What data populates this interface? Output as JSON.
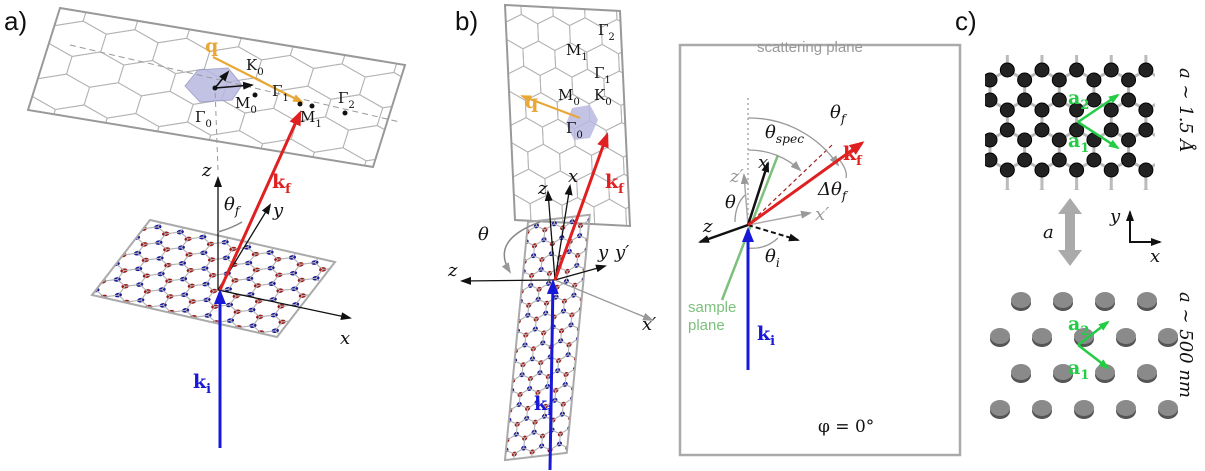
{
  "panel_a": {
    "tag": "a)",
    "q": "q",
    "K0": {
      "b": "K",
      "s": "0"
    },
    "Gamma1": {
      "b": "Γ",
      "s": "1"
    },
    "Gamma0": {
      "b": "Γ",
      "s": "0"
    },
    "M0": {
      "b": "M",
      "s": "0"
    },
    "M1": {
      "b": "M",
      "s": "1"
    },
    "Gamma2": {
      "b": "Γ",
      "s": "2"
    },
    "z": "z",
    "kf": {
      "b": "k",
      "s": "f"
    },
    "theta_f": {
      "b": "θ",
      "s": "f"
    },
    "y": "y",
    "x": "x",
    "ki": {
      "b": "k",
      "s": "i"
    }
  },
  "panel_b": {
    "tag": "b)",
    "Gamma2": {
      "b": "Γ",
      "s": "2"
    },
    "M1": {
      "b": "M",
      "s": "1"
    },
    "Gamma1": {
      "b": "Γ",
      "s": "1"
    },
    "M0": {
      "b": "M",
      "s": "0"
    },
    "K0": {
      "b": "K",
      "s": "0"
    },
    "Gamma0": {
      "b": "Γ",
      "s": "0"
    },
    "q": "q",
    "z": "z",
    "x": "x",
    "kf": {
      "b": "k",
      "s": "f"
    },
    "theta": "θ",
    "y": "y",
    "y_prime": "y′",
    "z_low": "z",
    "x_prime": "x′",
    "ki": {
      "b": "k",
      "s": "i"
    },
    "inset": {
      "title": "scattering plane",
      "theta_f": {
        "b": "θ",
        "s": "f"
      },
      "kf": {
        "b": "k",
        "s": "f"
      },
      "theta_spec": {
        "b": "θ",
        "s": "spec"
      },
      "dtheta_f": {
        "b": "Δθ",
        "s": "f"
      },
      "z_prime": "z′",
      "x": "x",
      "theta": "θ",
      "z": "z",
      "x_prime": "x′",
      "theta_i": {
        "b": "θ",
        "s": "i"
      },
      "sample_plane": [
        "sample",
        "plane"
      ],
      "ki": {
        "b": "k",
        "s": "i"
      },
      "phi": "φ = 0°"
    }
  },
  "panel_c": {
    "tag": "c)",
    "a2": {
      "b": "a",
      "s": "2"
    },
    "a1": {
      "b": "a",
      "s": "1"
    },
    "scale_top": "a ∼ 1.5 Å",
    "y": "y",
    "x": "x",
    "a": "a",
    "a2_low": {
      "b": "a",
      "s": "2"
    },
    "a1_low": {
      "b": "a",
      "s": "1"
    },
    "scale_bottom": "a ∼ 500 nm"
  }
}
